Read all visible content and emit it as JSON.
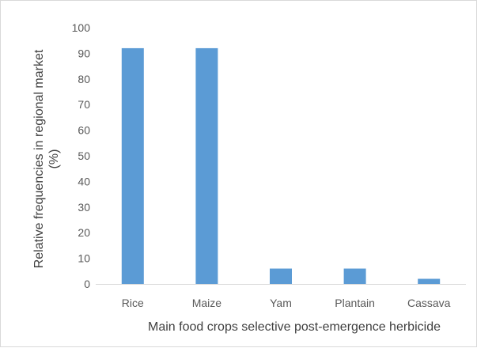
{
  "chart_data": {
    "type": "bar",
    "categories": [
      "Rice",
      "Maize",
      "Yam",
      "Plantain",
      "Cassava"
    ],
    "values": [
      92,
      92,
      6,
      6,
      2
    ],
    "xlabel": "Main food crops selective post-emergence herbicide",
    "ylabel_line1": "Relative frequencies in regional market",
    "ylabel_line2": "(%)",
    "ylim": [
      0,
      100
    ],
    "yticks": [
      0,
      10,
      20,
      30,
      40,
      50,
      60,
      70,
      80,
      90,
      100
    ],
    "ytick_labels": [
      "0",
      "10",
      "20",
      "30",
      "40",
      "50",
      "60",
      "70",
      "80",
      "90",
      "100"
    ],
    "bar_color": "#5b9bd5",
    "grid": false,
    "legend": false
  }
}
